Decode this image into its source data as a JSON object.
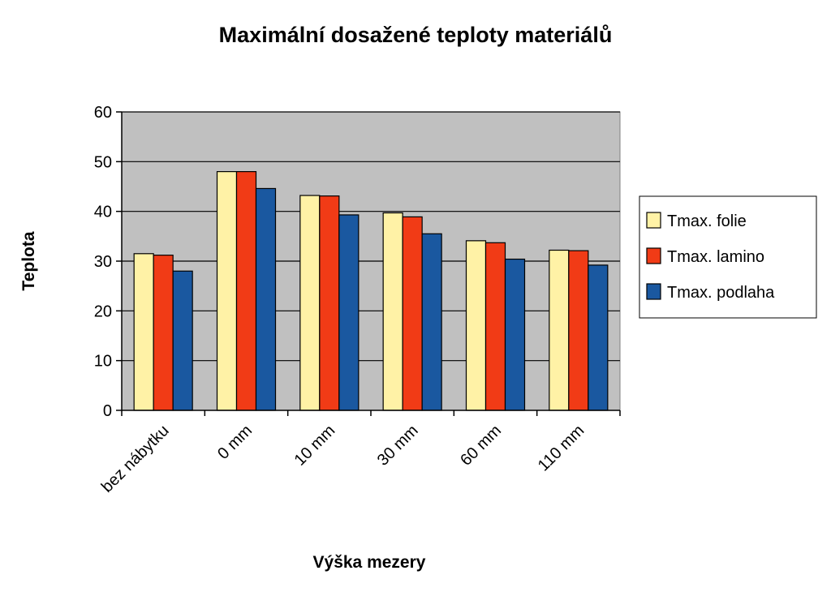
{
  "chart_data": {
    "type": "bar",
    "title": "Maximální dosažené teploty materiálů",
    "xlabel": "Výška mezery",
    "ylabel": "Teplota",
    "categories": [
      "bez nábytku",
      "0 mm",
      "10 mm",
      "30 mm",
      "60 mm",
      "110 mm"
    ],
    "series": [
      {
        "name": "Tmax. folie",
        "color": "#FFF2A6",
        "values": [
          31.5,
          48.0,
          43.2,
          39.7,
          34.1,
          32.2
        ]
      },
      {
        "name": "Tmax. lamino",
        "color": "#F13B16",
        "values": [
          31.2,
          48.0,
          43.1,
          38.9,
          33.7,
          32.1
        ]
      },
      {
        "name": "Tmax. podlaha",
        "color": "#1A58A0",
        "values": [
          28.0,
          44.6,
          39.3,
          35.5,
          30.4,
          29.2
        ]
      }
    ],
    "ylim": [
      0,
      60
    ],
    "yticks": [
      0,
      10,
      20,
      30,
      40,
      50,
      60
    ],
    "grid": true,
    "plot_background": "#C0C0C0",
    "legend_position": "right"
  }
}
